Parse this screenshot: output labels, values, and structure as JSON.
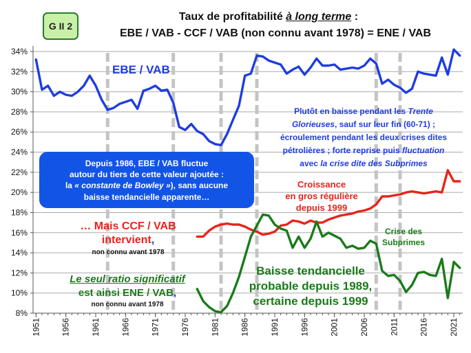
{
  "badge": "G II 2",
  "title_line1_prefix": "Taux de profitabilité ",
  "title_line1_emph": "à long terme",
  "title_line1_suffix": " :",
  "title_line2": "EBE / VAB   -   CCF / VAB  (non connu avant 1978)   =   ENE / VAB",
  "labels": {
    "ebe": "EBE / VAB",
    "blue_note": {
      "l1_a": "Plutôt en baisse pendant les ",
      "l1_b": "Trente",
      "l2_a": "Glorieuses",
      "l2_b": ", sauf sur leur fin (60-71) ;",
      "l3": "écroulement pendant les deux  crises dites",
      "l4_a": "pétrolières ; forte reprise puis ",
      "l4_b": "fluctuation",
      "l5_a": "avec ",
      "l5_b": "la crise dite des Subprimes"
    },
    "box": {
      "l1": "Depuis 1986, EBE / VAB fluctue",
      "l2": "autour du tiers de cette valeur ajoutée :",
      "l3_a": "la ",
      "l3_b": "« constante de Bowley »",
      "l3_c": "), sans aucune",
      "l4": "baisse tendancielle apparente…"
    },
    "red_note": [
      "Croissance",
      "en gros régulière",
      "depuis 1999"
    ],
    "mais_a": "… Mais CCF / VAB",
    "mais_b": "intervient",
    "mais_comma": ",",
    "mais_c": "non connu avant 1978",
    "seul_a": "Le seul ratio significatif",
    "seul_b": "est ainsi ENE / VAB",
    "seul_comma": ",",
    "seul_c": "non connu avant 1978",
    "crise": [
      "Crise des",
      "Subprimes"
    ],
    "baisse": [
      "Baisse tendancielle",
      "probable depuis 1989,",
      "certaine depuis 1999"
    ]
  },
  "chart_data": {
    "type": "line",
    "title": "Taux de profitabilité à long terme : EBE / VAB - CCF / VAB (non connu avant 1978) = ENE / VAB",
    "ylim": [
      8,
      34
    ],
    "yticks": [
      8,
      10,
      12,
      14,
      16,
      18,
      20,
      22,
      24,
      26,
      28,
      30,
      32,
      34
    ],
    "xticks": [
      1951,
      1956,
      1961,
      1966,
      1971,
      1976,
      1981,
      1986,
      1991,
      1996,
      2001,
      2006,
      2011,
      2016,
      2021
    ],
    "xlim": [
      1950.5,
      2022.5
    ],
    "vlines": [
      1963,
      1974,
      1982,
      1988,
      2008,
      2012
    ],
    "colors": {
      "ebe": "#1f3ce0",
      "ccf": "#e8231b",
      "ene": "#1a7a1a"
    },
    "series": [
      {
        "name": "EBE / VAB",
        "x": [
          1951,
          1952,
          1953,
          1954,
          1955,
          1956,
          1957,
          1958,
          1959,
          1960,
          1961,
          1962,
          1963,
          1964,
          1965,
          1966,
          1967,
          1968,
          1969,
          1970,
          1971,
          1972,
          1973,
          1974,
          1975,
          1976,
          1977,
          1978,
          1979,
          1980,
          1981,
          1982,
          1983,
          1984,
          1985,
          1986,
          1987,
          1988,
          1989,
          1990,
          1991,
          1992,
          1993,
          1994,
          1995,
          1996,
          1997,
          1998,
          1999,
          2000,
          2001,
          2002,
          2003,
          2004,
          2005,
          2006,
          2007,
          2008,
          2009,
          2010,
          2011,
          2012,
          2013,
          2014,
          2015,
          2016,
          2017,
          2018,
          2019,
          2020,
          2021,
          2022
        ],
        "values": [
          33.2,
          30.2,
          30.6,
          29.6,
          30.0,
          29.7,
          29.6,
          30.0,
          30.6,
          31.6,
          30.6,
          29.2,
          28.2,
          28.4,
          28.8,
          29.0,
          29.2,
          28.3,
          30.1,
          30.3,
          30.6,
          30.1,
          30.2,
          28.9,
          26.5,
          26.2,
          26.8,
          26.1,
          25.8,
          25.1,
          24.8,
          24.7,
          25.8,
          27.2,
          28.6,
          31.6,
          31.8,
          33.6,
          33.5,
          33.1,
          32.9,
          32.7,
          31.8,
          32.2,
          32.5,
          31.7,
          32.4,
          33.3,
          32.6,
          32.6,
          32.7,
          32.2,
          32.3,
          32.4,
          32.3,
          32.6,
          33.3,
          32.8,
          30.8,
          31.2,
          30.7,
          30.4,
          29.9,
          30.3,
          32.0,
          31.8,
          31.7,
          31.6,
          33.4,
          31.7,
          34.2,
          33.6
        ]
      },
      {
        "name": "CCF / VAB",
        "x": [
          1978,
          1979,
          1980,
          1981,
          1982,
          1983,
          1984,
          1985,
          1986,
          1987,
          1988,
          1989,
          1990,
          1991,
          1992,
          1993,
          1994,
          1995,
          1996,
          1997,
          1998,
          1999,
          2000,
          2001,
          2002,
          2003,
          2004,
          2005,
          2006,
          2007,
          2008,
          2009,
          2010,
          2011,
          2012,
          2013,
          2014,
          2015,
          2016,
          2017,
          2018,
          2019,
          2020,
          2021,
          2022
        ],
        "values": [
          15.6,
          15.6,
          16.2,
          16.6,
          16.8,
          16.9,
          16.8,
          16.8,
          16.6,
          16.3,
          16.1,
          15.8,
          15.9,
          16.1,
          16.7,
          16.8,
          17.2,
          17.1,
          16.9,
          17.2,
          17.0,
          17.0,
          17.3,
          17.5,
          17.7,
          17.8,
          17.9,
          18.1,
          18.2,
          18.4,
          18.8,
          19.6,
          19.6,
          19.7,
          19.8,
          20.0,
          20.1,
          20.0,
          19.9,
          20.0,
          20.1,
          20.0,
          22.2,
          21.1,
          21.1
        ]
      },
      {
        "name": "ENE / VAB",
        "x": [
          1978,
          1979,
          1980,
          1981,
          1982,
          1983,
          1984,
          1985,
          1986,
          1987,
          1988,
          1989,
          1990,
          1991,
          1992,
          1993,
          1994,
          1995,
          1996,
          1997,
          1998,
          1999,
          2000,
          2001,
          2002,
          2003,
          2004,
          2005,
          2006,
          2007,
          2008,
          2009,
          2010,
          2011,
          2012,
          2013,
          2014,
          2015,
          2016,
          2017,
          2018,
          2019,
          2020,
          2021,
          2022
        ],
        "values": [
          10.4,
          9.2,
          8.6,
          8.2,
          8.1,
          8.7,
          10.0,
          11.6,
          13.6,
          15.6,
          16.7,
          17.8,
          17.7,
          16.8,
          16.4,
          16.2,
          14.5,
          15.6,
          14.5,
          15.4,
          17.1,
          15.6,
          16.0,
          15.7,
          15.4,
          14.5,
          14.7,
          14.4,
          14.5,
          15.2,
          14.9,
          12.2,
          11.7,
          11.8,
          11.2,
          10.1,
          10.8,
          12.0,
          12.1,
          11.8,
          11.7,
          13.4,
          9.5,
          13.1,
          12.5
        ]
      }
    ]
  }
}
